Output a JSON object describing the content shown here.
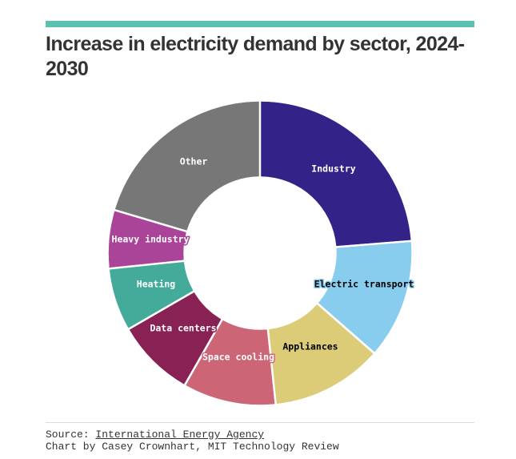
{
  "header": {
    "title": "Increase in electricity demand by sector, 2024-2030",
    "accent_color": "#5bbfb1"
  },
  "chart_data": {
    "type": "pie",
    "variant": "donut",
    "title": "Increase in electricity demand by sector, 2024-2030",
    "unit": "share of increase (%)",
    "start": "top, clockwise",
    "slices": [
      {
        "label": "Industry",
        "value": 23.7,
        "color": "#332288",
        "label_color": "#ffffff",
        "halo_color": "#332288"
      },
      {
        "label": "Electric transport",
        "value": 12.7,
        "color": "#88ccee",
        "label_color": "#000000",
        "halo_color": "#88ccee"
      },
      {
        "label": "Appliances",
        "value": 11.9,
        "color": "#ddcc77",
        "label_color": "#000000",
        "halo_color": "#ddcc77"
      },
      {
        "label": "Space cooling",
        "value": 9.9,
        "color": "#cc6677",
        "label_color": "#ffffff",
        "halo_color": "#cc6677"
      },
      {
        "label": "Data centers",
        "value": 8.4,
        "color": "#882255",
        "label_color": "#ffffff",
        "halo_color": "#882255"
      },
      {
        "label": "Heating",
        "value": 6.7,
        "color": "#44aa99",
        "label_color": "#ffffff",
        "halo_color": "#44aa99"
      },
      {
        "label": "Heavy industry",
        "value": 6.2,
        "color": "#aa4499",
        "label_color": "#ffffff",
        "halo_color": "#aa4499"
      },
      {
        "label": "Other",
        "value": 20.4,
        "color": "#777777",
        "label_color": "#ffffff",
        "halo_color": "#777777"
      }
    ],
    "legend": "none (direct labels)"
  },
  "footer": {
    "source_prefix": "Source: ",
    "source_link": "International Energy Agency",
    "credit": "Chart by Casey Crownhart, MIT Technology Review"
  }
}
